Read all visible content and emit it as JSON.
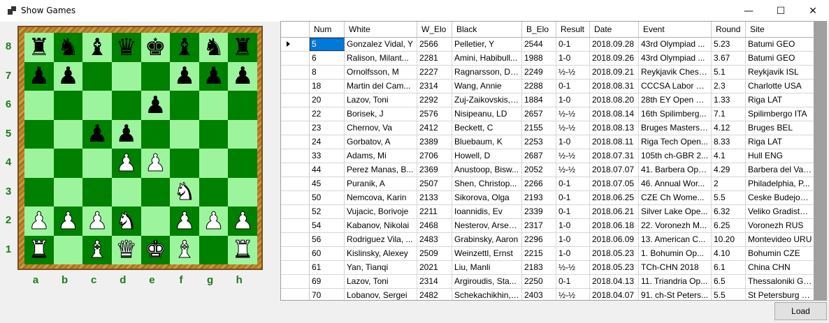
{
  "window": {
    "title": "Show Games",
    "minimize_glyph": "—",
    "maximize_glyph": "☐",
    "close_glyph": "✕",
    "icon": "app-window-icon"
  },
  "board": {
    "ranks": [
      "8",
      "7",
      "6",
      "5",
      "4",
      "3",
      "2",
      "1"
    ],
    "files": [
      "a",
      "b",
      "c",
      "d",
      "e",
      "f",
      "g",
      "h"
    ],
    "light_color": "#9cf59c",
    "dark_color": "#008000",
    "label_color": "#1c7a1c",
    "position": [
      [
        "bR",
        "bN",
        "bB",
        "bQ",
        "bK",
        "bB",
        "bN",
        "bR"
      ],
      [
        "bP",
        "bP",
        "",
        "",
        "",
        "bP",
        "bP",
        "bP"
      ],
      [
        "",
        "",
        "",
        "",
        "bP",
        "",
        "",
        ""
      ],
      [
        "",
        "",
        "bP",
        "bP",
        "",
        "",
        "",
        ""
      ],
      [
        "",
        "",
        "",
        "wP",
        "wP",
        "",
        "",
        ""
      ],
      [
        "",
        "",
        "",
        "",
        "",
        "wN",
        "",
        ""
      ],
      [
        "wP",
        "wP",
        "wP",
        "wN",
        "",
        "wP",
        "wP",
        "wP"
      ],
      [
        "wR",
        "",
        "wB",
        "wQ",
        "wK",
        "wB",
        "",
        "wR"
      ]
    ]
  },
  "table": {
    "columns": [
      {
        "label": "Num"
      },
      {
        "label": "White"
      },
      {
        "label": "W_Elo"
      },
      {
        "label": "Black"
      },
      {
        "label": "B_Elo"
      },
      {
        "label": "Result"
      },
      {
        "label": "Date"
      },
      {
        "label": "Event"
      },
      {
        "label": "Round"
      },
      {
        "label": "Site"
      }
    ],
    "selected_row": 0,
    "selection_color": "#0078d7",
    "rows": [
      [
        "5",
        "Gonzalez Vidal, Y",
        "2566",
        "Pelletier, Y",
        "2544",
        "0-1",
        "2018.09.28",
        "43rd Olympiad ...",
        "5.23",
        "Batumi GEO"
      ],
      [
        "6",
        "Ralison, Milant...",
        "2281",
        "Amini, Habibull...",
        "1988",
        "1-0",
        "2018.09.26",
        "43rd Olympiad ...",
        "3.67",
        "Batumi GEO"
      ],
      [
        "8",
        "Ornolfsson, M",
        "2227",
        "Ragnarsson, Da...",
        "2249",
        "½-½",
        "2018.09.21",
        "Reykjavik Chess...",
        "5.1",
        "Reykjavik ISL"
      ],
      [
        "18",
        "Martin del Cam...",
        "2314",
        "Wang, Annie",
        "2288",
        "0-1",
        "2018.08.31",
        "CCCSA Labor D...",
        "2.3",
        "Charlotte USA"
      ],
      [
        "20",
        "Lazov, Toni",
        "2292",
        "Zuj-Zaikovskis, ...",
        "1884",
        "1-0",
        "2018.08.20",
        "28th EY Open U...",
        "1.33",
        "Riga LAT"
      ],
      [
        "22",
        "Borisek, J",
        "2576",
        "Nisipeanu, LD",
        "2657",
        "½-½",
        "2018.08.14",
        "16th Spilimberg...",
        "7.1",
        "Spilimbergo ITA"
      ],
      [
        "23",
        "Chernov, Va",
        "2412",
        "Beckett, C",
        "2155",
        "½-½",
        "2018.08.13",
        "Bruges Masters ...",
        "4.12",
        "Bruges BEL"
      ],
      [
        "24",
        "Gorbatov, A",
        "2389",
        "Bluebaum, K",
        "2253",
        "1-0",
        "2018.08.11",
        "Riga Tech Open...",
        "8.33",
        "Riga LAT"
      ],
      [
        "33",
        "Adams, Mi",
        "2706",
        "Howell, D",
        "2687",
        "½-½",
        "2018.07.31",
        "105th ch-GBR 2...",
        "4.1",
        "Hull ENG"
      ],
      [
        "44",
        "Perez Manas, B...",
        "2369",
        "Anustoop, Bisw...",
        "2052",
        "½-½",
        "2018.07.07",
        "41. Barbera Ope...",
        "4.29",
        "Barbera del Vall..."
      ],
      [
        "45",
        "Puranik, A",
        "2507",
        "Shen, Christop...",
        "2266",
        "0-1",
        "2018.07.05",
        "46. Annual Wor...",
        "2",
        "Philadelphia, P..."
      ],
      [
        "50",
        "Nemcova, Karin",
        "2133",
        "Sikorova, Olga",
        "2193",
        "0-1",
        "2018.06.25",
        "CZE Ch Wome...",
        "5.5",
        "Ceske Budejovi..."
      ],
      [
        "52",
        "Vujacic, Borivoje",
        "2211",
        "Ioannidis, Ev",
        "2339",
        "0-1",
        "2018.06.21",
        "Silver Lake Ope...",
        "6.32",
        "Veliko Gradiste ..."
      ],
      [
        "54",
        "Kabanov, Nikolai",
        "2468",
        "Nesterov, Arseniy",
        "2317",
        "1-0",
        "2018.06.18",
        "22. Voronezh M...",
        "6.25",
        "Voronezh RUS"
      ],
      [
        "56",
        "Rodriguez Vila, ...",
        "2483",
        "Grabinsky, Aaron",
        "2296",
        "1-0",
        "2018.06.09",
        "13. American C...",
        "10.20",
        "Montevideo URU"
      ],
      [
        "60",
        "Kislinsky, Alexey",
        "2509",
        "Weinzettl, Ernst",
        "2215",
        "1-0",
        "2018.05.23",
        "1. Bohumin Op...",
        "4.10",
        "Bohumin CZE"
      ],
      [
        "61",
        "Yan, Tianqi",
        "2021",
        "Liu, Manli",
        "2183",
        "½-½",
        "2018.05.23",
        "TCh-CHN 2018",
        "6.1",
        "China CHN"
      ],
      [
        "69",
        "Lazov, Toni",
        "2314",
        "Argiroudis, Sta...",
        "2250",
        "0-1",
        "2018.04.13",
        "11. Triandria Op...",
        "6.5",
        "Thessaloniki GRE"
      ],
      [
        "70",
        "Lobanov, Sergei",
        "2482",
        "Schekachikhin, ...",
        "2403",
        "½-½",
        "2018.04.07",
        "91. ch-St Peters...",
        "5.5",
        "St Petersburg R..."
      ]
    ]
  },
  "load_button": {
    "label": "Load"
  }
}
